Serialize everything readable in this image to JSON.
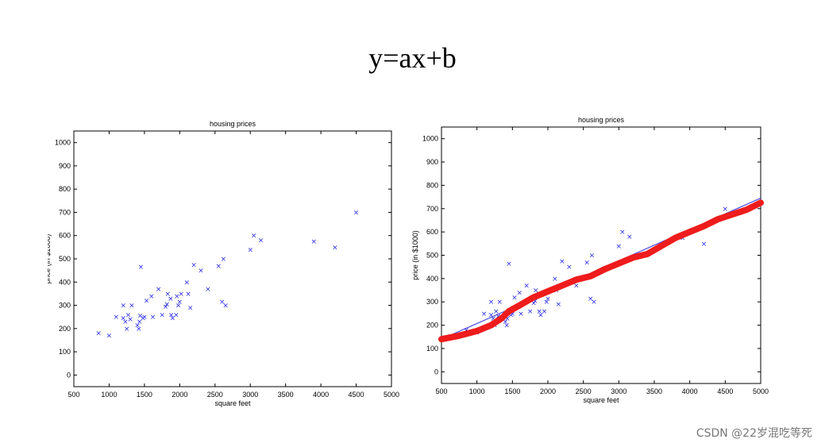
{
  "slide": {
    "title": "y=ax+b",
    "watermark": "CSDN @22岁混吃等死"
  },
  "chart_data": [
    {
      "type": "scatter",
      "title": "housing prices",
      "xlabel": "square feet",
      "ylabel": "price (in $1000)",
      "xlim": [
        500,
        5000
      ],
      "ylim": [
        -50,
        1050
      ],
      "xticks": [
        500,
        1000,
        1500,
        2000,
        2500,
        3000,
        3500,
        4000,
        4500,
        5000
      ],
      "yticks": [
        0,
        100,
        200,
        300,
        400,
        500,
        600,
        700,
        800,
        900,
        1000
      ],
      "marker": "x",
      "point_color": "#2a2ae0",
      "points": [
        [
          850,
          180
        ],
        [
          1000,
          170
        ],
        [
          1100,
          250
        ],
        [
          1200,
          245
        ],
        [
          1200,
          300
        ],
        [
          1230,
          230
        ],
        [
          1250,
          200
        ],
        [
          1270,
          260
        ],
        [
          1300,
          240
        ],
        [
          1320,
          300
        ],
        [
          1400,
          215
        ],
        [
          1420,
          200
        ],
        [
          1430,
          230
        ],
        [
          1440,
          255
        ],
        [
          1450,
          465
        ],
        [
          1480,
          245
        ],
        [
          1500,
          250
        ],
        [
          1530,
          320
        ],
        [
          1600,
          340
        ],
        [
          1620,
          250
        ],
        [
          1700,
          370
        ],
        [
          1750,
          260
        ],
        [
          1800,
          295
        ],
        [
          1820,
          305
        ],
        [
          1830,
          350
        ],
        [
          1870,
          330
        ],
        [
          1880,
          260
        ],
        [
          1900,
          245
        ],
        [
          1950,
          260
        ],
        [
          1960,
          340
        ],
        [
          1980,
          300
        ],
        [
          2000,
          315
        ],
        [
          2020,
          350
        ],
        [
          2100,
          400
        ],
        [
          2120,
          350
        ],
        [
          2150,
          290
        ],
        [
          2200,
          475
        ],
        [
          2300,
          450
        ],
        [
          2400,
          370
        ],
        [
          2550,
          470
        ],
        [
          2600,
          315
        ],
        [
          2620,
          500
        ],
        [
          2650,
          300
        ],
        [
          3000,
          540
        ],
        [
          3050,
          600
        ],
        [
          3150,
          580
        ],
        [
          3900,
          575
        ],
        [
          4200,
          550
        ],
        [
          4500,
          700
        ]
      ]
    },
    {
      "type": "scatter",
      "title": "housing prices",
      "xlabel": "square feet",
      "ylabel": "price (in $1000)",
      "xlim": [
        500,
        5000
      ],
      "ylim": [
        -50,
        1050
      ],
      "xticks": [
        500,
        1000,
        1500,
        2000,
        2500,
        3000,
        3500,
        4000,
        4500,
        5000
      ],
      "yticks": [
        0,
        100,
        200,
        300,
        400,
        500,
        600,
        700,
        800,
        900,
        1000
      ],
      "marker": "x",
      "point_color": "#2a2ae0",
      "points": [
        [
          850,
          180
        ],
        [
          1000,
          170
        ],
        [
          1100,
          250
        ],
        [
          1200,
          245
        ],
        [
          1200,
          300
        ],
        [
          1230,
          230
        ],
        [
          1250,
          200
        ],
        [
          1270,
          260
        ],
        [
          1300,
          240
        ],
        [
          1320,
          300
        ],
        [
          1400,
          215
        ],
        [
          1420,
          200
        ],
        [
          1430,
          230
        ],
        [
          1440,
          255
        ],
        [
          1450,
          465
        ],
        [
          1480,
          245
        ],
        [
          1500,
          250
        ],
        [
          1530,
          320
        ],
        [
          1600,
          340
        ],
        [
          1620,
          250
        ],
        [
          1700,
          370
        ],
        [
          1750,
          260
        ],
        [
          1800,
          295
        ],
        [
          1820,
          305
        ],
        [
          1830,
          350
        ],
        [
          1870,
          330
        ],
        [
          1880,
          260
        ],
        [
          1900,
          245
        ],
        [
          1950,
          260
        ],
        [
          1960,
          340
        ],
        [
          1980,
          300
        ],
        [
          2000,
          315
        ],
        [
          2020,
          350
        ],
        [
          2100,
          400
        ],
        [
          2120,
          350
        ],
        [
          2150,
          290
        ],
        [
          2200,
          475
        ],
        [
          2300,
          450
        ],
        [
          2400,
          370
        ],
        [
          2550,
          470
        ],
        [
          2600,
          315
        ],
        [
          2620,
          500
        ],
        [
          2650,
          300
        ],
        [
          3000,
          540
        ],
        [
          3050,
          600
        ],
        [
          3150,
          580
        ],
        [
          3900,
          575
        ],
        [
          4200,
          550
        ],
        [
          4500,
          700
        ]
      ],
      "fit_line": {
        "color": "#4a4ae6",
        "points": [
          [
            500,
            140
          ],
          [
            5000,
            745
          ]
        ]
      },
      "hand_curve": {
        "color": "#ee1c1c",
        "points": [
          [
            500,
            140
          ],
          [
            750,
            155
          ],
          [
            1000,
            175
          ],
          [
            1200,
            200
          ],
          [
            1350,
            230
          ],
          [
            1450,
            260
          ],
          [
            1600,
            285
          ],
          [
            1800,
            320
          ],
          [
            2000,
            345
          ],
          [
            2200,
            370
          ],
          [
            2400,
            395
          ],
          [
            2600,
            410
          ],
          [
            2800,
            440
          ],
          [
            3000,
            465
          ],
          [
            3200,
            490
          ],
          [
            3400,
            505
          ],
          [
            3600,
            540
          ],
          [
            3800,
            575
          ],
          [
            4000,
            600
          ],
          [
            4200,
            625
          ],
          [
            4400,
            655
          ],
          [
            4600,
            675
          ],
          [
            4800,
            695
          ],
          [
            5000,
            725
          ]
        ]
      }
    }
  ]
}
